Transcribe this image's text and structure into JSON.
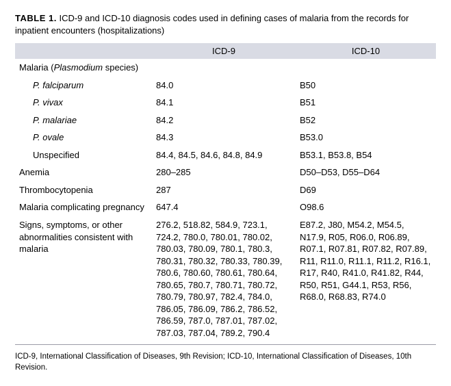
{
  "title": {
    "label": "TABLE 1.",
    "text": "ICD-9 and ICD-10 diagnosis codes used in defining cases of malaria from the records for inpatient encounters (hospitalizations)"
  },
  "columns": {
    "c1": "",
    "c2": "ICD-9",
    "c3": "ICD-10"
  },
  "rows": {
    "malaria_header_a": "Malaria (",
    "malaria_header_b": "Plasmodium",
    "malaria_header_c": " species)",
    "pf_label": "P. falciparum",
    "pf_icd9": "84.0",
    "pf_icd10": "B50",
    "pv_label": "P. vivax",
    "pv_icd9": "84.1",
    "pv_icd10": "B51",
    "pm_label": "P. malariae",
    "pm_icd9": "84.2",
    "pm_icd10": "B52",
    "po_label": "P. ovale",
    "po_icd9": "84.3",
    "po_icd10": "B53.0",
    "un_label": "Unspecified",
    "un_icd9": "84.4, 84.5, 84.6, 84.8, 84.9",
    "un_icd10": "B53.1, B53.8, B54",
    "anemia_label": "Anemia",
    "anemia_icd9": "280–285",
    "anemia_icd10": "D50–D53, D55–D64",
    "thr_label": "Thrombocytopenia",
    "thr_icd9": "287",
    "thr_icd10": "D69",
    "preg_label": "Malaria complicating pregnancy",
    "preg_icd9": "647.4",
    "preg_icd10": "O98.6",
    "signs_label": "Signs, symptoms, or other abnormalities consistent with malaria",
    "signs_icd9": "276.2, 518.82, 584.9, 723.1, 724.2,  780.0, 780.01, 780.02, 780.03, 780.09, 780.1, 780.3, 780.31, 780.32, 780.33, 780.39, 780.6, 780.60, 780.61, 780.64, 780.65, 780.7, 780.71, 780.72, 780.79, 780.97, 782.4, 784.0, 786.05, 786.09, 786.2, 786.52, 786.59, 787.0, 787.01, 787.02, 787.03, 787.04, 789.2, 790.4",
    "signs_icd10": "E87.2, J80, M54.2, M54.5, N17.9, R05, R06.0, R06.89, R07.1, R07.81, R07.82, R07.89, R11, R11.0, R11.1, R11.2, R16.1, R17, R40, R41.0, R41.82, R44, R50, R51, G44.1, R53, R56, R68.0, R68.83, R74.0"
  },
  "footnote": "ICD-9, International Classification of Diseases, 9th Revision; ICD-10, International Classification of Diseases, 10th Revision."
}
